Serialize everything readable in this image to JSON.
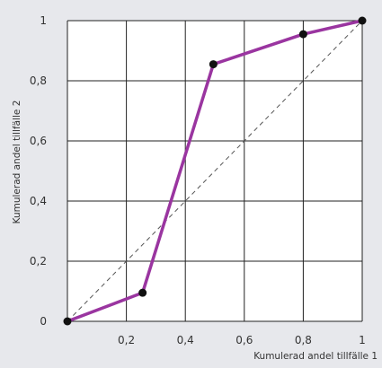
{
  "chart_data": {
    "type": "line",
    "xlabel": "Kumulerad andel tillfälle 1",
    "ylabel": "Kumulerad andel tillfälle 2",
    "xlim": [
      0,
      1
    ],
    "ylim": [
      0,
      1
    ],
    "grid": true,
    "x_ticks": [
      0.2,
      0.4,
      0.6,
      0.8,
      1
    ],
    "x_tick_labels": [
      "0,2",
      "0,4",
      "0,6",
      "0,8",
      "1"
    ],
    "y_ticks": [
      0,
      0.2,
      0.4,
      0.6,
      0.8,
      1
    ],
    "y_tick_labels": [
      "0",
      "0,2",
      "0,4",
      "0,6",
      "0,8",
      "1"
    ],
    "series": [
      {
        "x": [
          0,
          0.255,
          0.495,
          0.8,
          1
        ],
        "y": [
          0,
          0.095,
          0.855,
          0.955,
          1
        ],
        "color": "#9a35a0",
        "marker_color": "#111111"
      }
    ],
    "reference_line": {
      "x": [
        0,
        1
      ],
      "y": [
        0,
        1
      ],
      "style": "dashed",
      "color": "#555555"
    },
    "colors": {
      "background": "#e7e8ec",
      "plot_background": "#ffffff",
      "grid": "#222222"
    }
  }
}
